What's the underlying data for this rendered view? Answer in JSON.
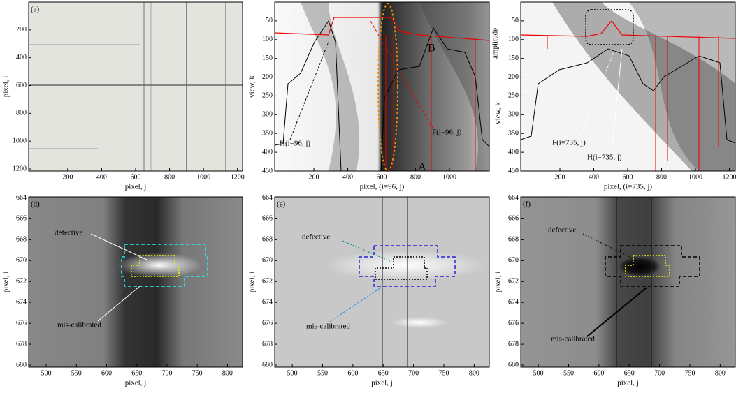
{
  "panels": [
    {
      "label": "(a)",
      "xlabel": "pixel, j",
      "ylabel": "pixel, i",
      "xlim": [
        -30,
        1230
      ],
      "ylim": [
        0,
        1215
      ],
      "xticks": [
        200,
        400,
        600,
        800,
        1000,
        1200
      ],
      "yticks": [
        200,
        400,
        600,
        800,
        1000,
        1200
      ],
      "annotations": []
    },
    {
      "label": "",
      "xlabel": "pixel, (i=96, j)",
      "ylabel": "view, k",
      "xlim": [
        -31,
        1235
      ],
      "ylim": [
        0,
        450
      ],
      "xticks": [
        200,
        400,
        600,
        800,
        1000
      ],
      "yticks": [
        50,
        100,
        150,
        200,
        250,
        300,
        350,
        400,
        450
      ],
      "annotations": [
        "B",
        "A",
        "F(i=96, j)",
        "H(i=96, j)"
      ]
    },
    {
      "label": "",
      "xlabel": "pixel, (i=735, j)",
      "ylabel": "view, k",
      "xlim": [
        -31,
        1235
      ],
      "ylim": [
        0,
        450
      ],
      "xticks": [
        200,
        400,
        600,
        800,
        1000,
        1200
      ],
      "yticks": [
        50,
        100,
        150,
        200,
        250,
        300,
        350,
        400,
        450
      ],
      "annotations": [
        "F(i=735, j)",
        "H(i=735, j)",
        "amplitude"
      ]
    },
    {
      "label": "(d)",
      "xlabel": "pixel, j",
      "ylabel": "pixel, i",
      "xlim": [
        471,
        825
      ],
      "ylim": [
        663.9,
        680.2
      ],
      "xticks": [
        500,
        550,
        600,
        650,
        700,
        750,
        800
      ],
      "yticks": [
        664,
        666,
        668,
        670,
        672,
        674,
        676,
        678,
        680
      ],
      "annotations": [
        "defective",
        "mis-calibrated"
      ]
    },
    {
      "label": "(e)",
      "xlabel": "pixel, j",
      "ylabel": "pixel, i",
      "xlim": [
        471,
        825
      ],
      "ylim": [
        663.9,
        680.2
      ],
      "xticks": [
        500,
        550,
        600,
        650,
        700,
        750,
        800
      ],
      "yticks": [
        664,
        666,
        668,
        670,
        672,
        674,
        676,
        678,
        680
      ],
      "annotations": [
        "defective",
        "mis-calibrated"
      ]
    },
    {
      "label": "(f)",
      "xlabel": "pixel, j",
      "ylabel": "pixel, i",
      "xlim": [
        471,
        825
      ],
      "ylim": [
        663.9,
        680.2
      ],
      "xticks": [
        500,
        550,
        600,
        650,
        700,
        750,
        800
      ],
      "yticks": [
        664,
        666,
        668,
        670,
        672,
        674,
        676,
        678,
        680
      ],
      "annotations": [
        "defective",
        "mis-calibrated"
      ]
    }
  ]
}
